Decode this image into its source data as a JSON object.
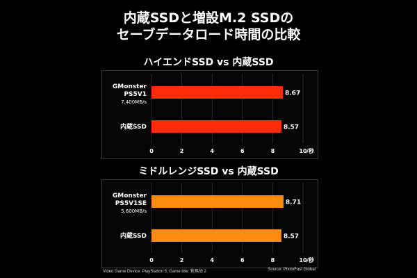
{
  "header": {
    "title_line1": "内蔵SSDと増設M.2 SSDの",
    "title_line2": "セーブデータロード時間の比較"
  },
  "chart_data": [
    {
      "type": "bar",
      "orientation": "horizontal",
      "title": "ハイエンドSSD vs 内蔵SSD",
      "categories": [
        {
          "lines": [
            "GMonster",
            "PS5V1",
            "7,400MB/s"
          ]
        },
        {
          "lines": [
            "内蔵SSD"
          ]
        }
      ],
      "values": [
        8.67,
        8.57
      ],
      "value_labels": [
        "8.67",
        "8.57"
      ],
      "bar_color": "#ff2a0a",
      "xlim": [
        0,
        10
      ],
      "xticks": [
        "0",
        "2",
        "4",
        "6",
        "8",
        "10"
      ],
      "xunit": "/秒",
      "grid": true
    },
    {
      "type": "bar",
      "orientation": "horizontal",
      "title": "ミドルレンジSSD vs 内蔵SSD",
      "categories": [
        {
          "lines": [
            "GMonster",
            "PS5V1SE",
            "5,600MB/s"
          ]
        },
        {
          "lines": [
            "内蔵SSD"
          ]
        }
      ],
      "values": [
        8.71,
        8.57
      ],
      "value_labels": [
        "8.71",
        "8.57"
      ],
      "bar_color": "#ff8c10",
      "xlim": [
        0,
        10
      ],
      "xticks": [
        "0",
        "2",
        "4",
        "6",
        "8",
        "10"
      ],
      "xunit": "/秒",
      "grid": true
    }
  ],
  "footer": {
    "left": "Video Game Device: PlayStation 5, Game title: 對馬伝２",
    "right": "Source: PhotoFast Global"
  }
}
